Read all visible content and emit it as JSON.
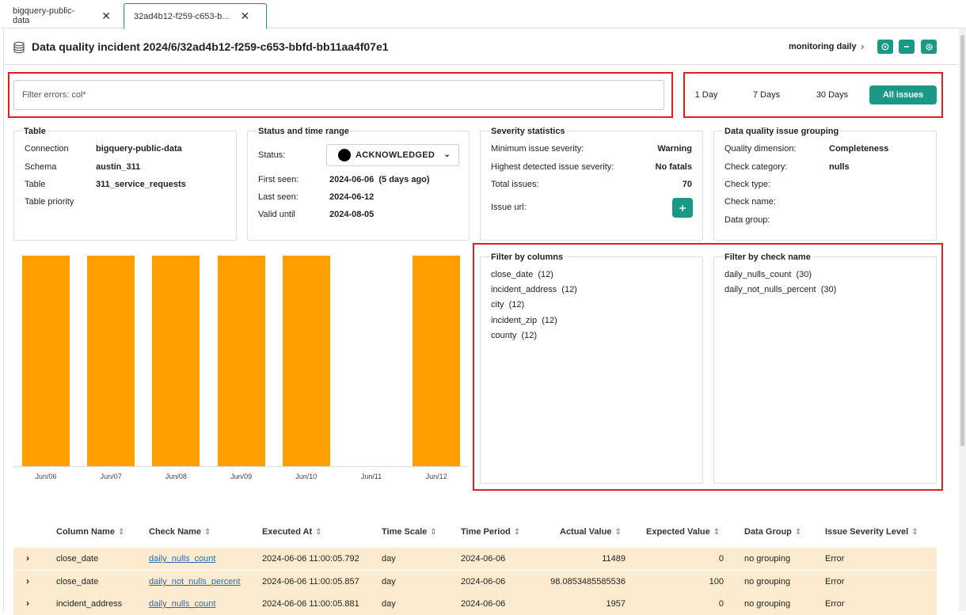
{
  "tabs": [
    {
      "label": "bigquery-public-data"
    },
    {
      "label": "32ad4b12-f259-c653-b..."
    }
  ],
  "header": {
    "title": "Data quality incident 2024/6/32ad4b12-f259-c653-bbfd-bb11aa4f07e1",
    "monitoring_label": "monitoring daily"
  },
  "filter": {
    "placeholder": "Filter errors: col*"
  },
  "time_ranges": [
    "1 Day",
    "7 Days",
    "30 Days",
    "All issues"
  ],
  "table_card": {
    "title": "Table",
    "rows": [
      {
        "label": "Connection",
        "value": "bigquery-public-data"
      },
      {
        "label": "Schema",
        "value": "austin_311"
      },
      {
        "label": "Table",
        "value": "311_service_requests"
      },
      {
        "label": "Table priority",
        "value": ""
      }
    ]
  },
  "status_card": {
    "title": "Status and time range",
    "status_label": "Status:",
    "status_value": "ACKNOWLEDGED",
    "rows": [
      {
        "label": "First seen:",
        "value": "2024-06-06  (5 days ago)"
      },
      {
        "label": "Last seen:",
        "value": "2024-06-12"
      },
      {
        "label": "Valid until",
        "value": "2024-08-05"
      }
    ]
  },
  "severity_card": {
    "title": "Severity statistics",
    "rows": [
      {
        "label": "Minimum issue severity:",
        "value": "Warning"
      },
      {
        "label": "Highest detected issue severity:",
        "value": "No fatals"
      },
      {
        "label": "Total issues:",
        "value": "70"
      }
    ],
    "issue_url_label": "Issue url:"
  },
  "grouping_card": {
    "title": "Data quality issue grouping",
    "rows": [
      {
        "label": "Quality dimension:",
        "value": "Completeness"
      },
      {
        "label": "Check category:",
        "value": "nulls"
      },
      {
        "label": "Check type:",
        "value": ""
      },
      {
        "label": "Check name:",
        "value": ""
      },
      {
        "label": "Data group:",
        "value": ""
      }
    ]
  },
  "chart_data": {
    "type": "bar",
    "categories": [
      "Jun/06",
      "Jun/07",
      "Jun/08",
      "Jun/09",
      "Jun/10",
      "Jun/11",
      "Jun/12"
    ],
    "values": [
      1,
      1,
      1,
      1,
      1,
      0,
      1
    ],
    "title": "",
    "xlabel": "",
    "ylabel": "",
    "color": "#ff9f00"
  },
  "filter_columns": {
    "title": "Filter by columns",
    "items": [
      {
        "name": "close_date",
        "count": "(12)"
      },
      {
        "name": "incident_address",
        "count": "(12)"
      },
      {
        "name": "city",
        "count": "(12)"
      },
      {
        "name": "incident_zip",
        "count": "(12)"
      },
      {
        "name": "county",
        "count": "(12)"
      }
    ]
  },
  "filter_checks": {
    "title": "Filter by check name",
    "items": [
      {
        "name": "daily_nulls_count",
        "count": "(30)"
      },
      {
        "name": "daily_not_nulls_percent",
        "count": "(30)"
      }
    ]
  },
  "issues_table": {
    "columns": [
      "Column Name",
      "Check Name",
      "Executed At",
      "Time Scale",
      "Time Period",
      "Actual Value",
      "Expected Value",
      "Data Group",
      "Issue Severity Level"
    ],
    "rows": [
      [
        "close_date",
        "daily_nulls_count",
        "2024-06-06 11:00:05.792",
        "day",
        "2024-06-06",
        "11489",
        "0",
        "no grouping",
        "Error"
      ],
      [
        "close_date",
        "daily_not_nulls_percent",
        "2024-06-06 11:00:05.857",
        "day",
        "2024-06-06",
        "98.0853485585536",
        "100",
        "no grouping",
        "Error"
      ],
      [
        "incident_address",
        "daily_nulls_count",
        "2024-06-06 11:00:05.881",
        "day",
        "2024-06-06",
        "1957",
        "0",
        "no grouping",
        "Error"
      ]
    ]
  },
  "colors": {
    "accent": "#1a9a86",
    "highlight_box": "#e02020",
    "bar": "#ff9f00",
    "row_bg": "#fdebd0"
  }
}
